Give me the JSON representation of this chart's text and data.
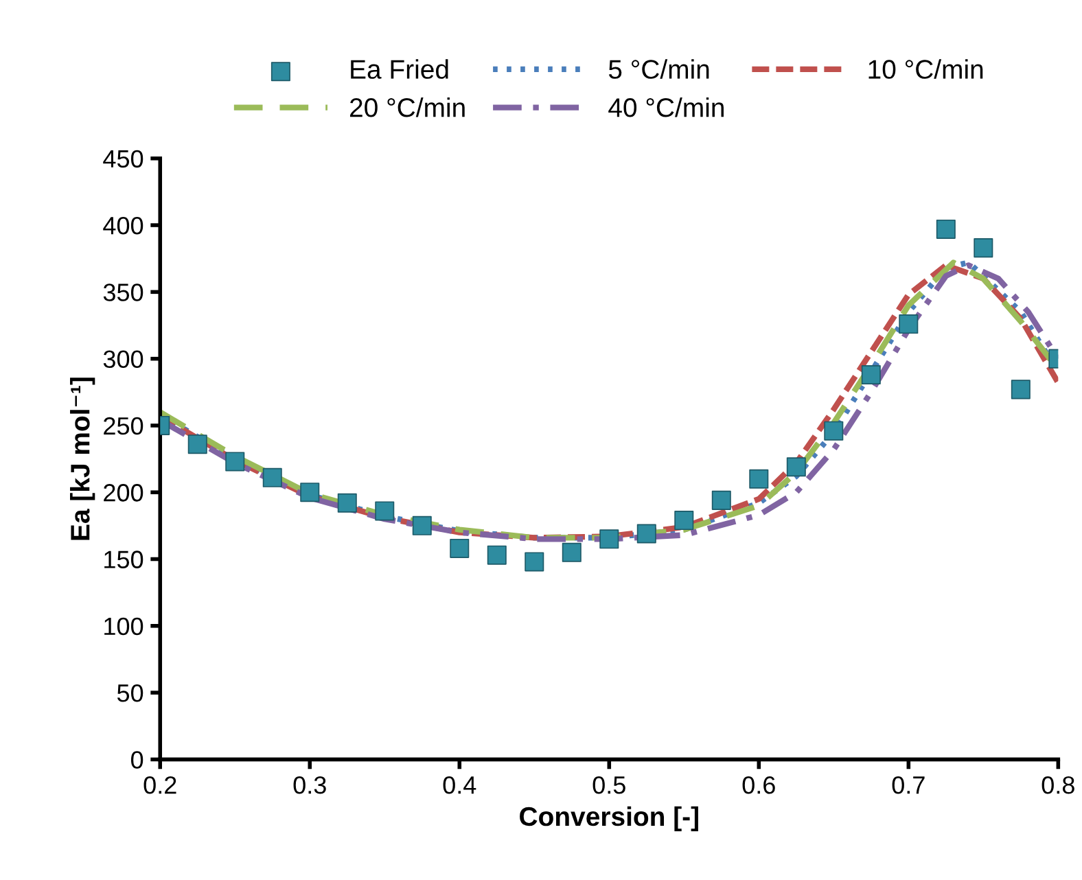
{
  "chart_data": {
    "type": "line",
    "xlabel": "Conversion [-]",
    "ylabel": "Ea [kJ mol⁻¹]",
    "xlim": [
      0.2,
      0.8
    ],
    "xticks": [
      {
        "value": 0.2,
        "label": "0.2"
      },
      {
        "value": 0.3,
        "label": "0.3"
      },
      {
        "value": 0.4,
        "label": "0.4"
      },
      {
        "value": 0.5,
        "label": "0.5"
      },
      {
        "value": 0.6,
        "label": "0.6"
      },
      {
        "value": 0.7,
        "label": "0.7"
      },
      {
        "value": 0.8,
        "label": "0.8"
      }
    ],
    "ylim": [
      0,
      450
    ],
    "yticks": [
      0,
      50,
      100,
      150,
      200,
      250,
      300,
      350,
      400,
      450
    ],
    "grid": false,
    "legend": "top",
    "series": [
      {
        "name": "Ea Fried",
        "type": "scatter",
        "marker": "square",
        "color": "#2e8ca0",
        "x": [
          0.2,
          0.225,
          0.25,
          0.275,
          0.3,
          0.325,
          0.35,
          0.375,
          0.4,
          0.425,
          0.45,
          0.475,
          0.5,
          0.525,
          0.55,
          0.575,
          0.6,
          0.625,
          0.65,
          0.675,
          0.7,
          0.725,
          0.75,
          0.775,
          0.8
        ],
        "values": [
          250,
          236,
          223,
          211,
          200,
          192,
          186,
          175,
          158,
          153,
          148,
          155,
          165,
          169,
          179,
          194,
          210,
          219,
          246,
          288,
          326,
          397,
          383,
          277,
          300
        ]
      },
      {
        "name": "5 °C/min",
        "line_style": "dotted",
        "color": "#4a7ebb",
        "x": [
          0.2,
          0.25,
          0.3,
          0.35,
          0.4,
          0.45,
          0.5,
          0.55,
          0.6,
          0.625,
          0.65,
          0.675,
          0.7,
          0.725,
          0.74,
          0.75,
          0.775,
          0.8
        ],
        "values": [
          258,
          225,
          198,
          182,
          171,
          166,
          166,
          172,
          192,
          212,
          245,
          290,
          335,
          368,
          372,
          362,
          335,
          290
        ]
      },
      {
        "name": "10 °C/min",
        "line_style": "dashed",
        "color": "#c0504d",
        "x": [
          0.2,
          0.25,
          0.3,
          0.35,
          0.4,
          0.45,
          0.5,
          0.55,
          0.6,
          0.625,
          0.65,
          0.675,
          0.7,
          0.725,
          0.75,
          0.775,
          0.8
        ],
        "values": [
          257,
          224,
          197,
          181,
          170,
          166,
          167,
          174,
          195,
          222,
          262,
          305,
          348,
          370,
          360,
          330,
          282
        ]
      },
      {
        "name": "20 °C/min",
        "line_style": "longdash",
        "color": "#9bbb59",
        "x": [
          0.2,
          0.25,
          0.3,
          0.35,
          0.4,
          0.45,
          0.5,
          0.55,
          0.6,
          0.625,
          0.65,
          0.675,
          0.7,
          0.73,
          0.75,
          0.775,
          0.8
        ],
        "values": [
          260,
          227,
          199,
          183,
          172,
          166,
          166,
          172,
          190,
          215,
          252,
          295,
          340,
          372,
          360,
          328,
          292
        ]
      },
      {
        "name": "40 °C/min",
        "line_style": "dashdot",
        "color": "#8064a2",
        "x": [
          0.2,
          0.25,
          0.3,
          0.35,
          0.4,
          0.45,
          0.5,
          0.55,
          0.6,
          0.625,
          0.65,
          0.675,
          0.7,
          0.725,
          0.74,
          0.76,
          0.78,
          0.8
        ],
        "values": [
          254,
          222,
          196,
          180,
          170,
          165,
          165,
          168,
          183,
          200,
          232,
          275,
          322,
          362,
          370,
          360,
          335,
          300
        ]
      }
    ]
  }
}
